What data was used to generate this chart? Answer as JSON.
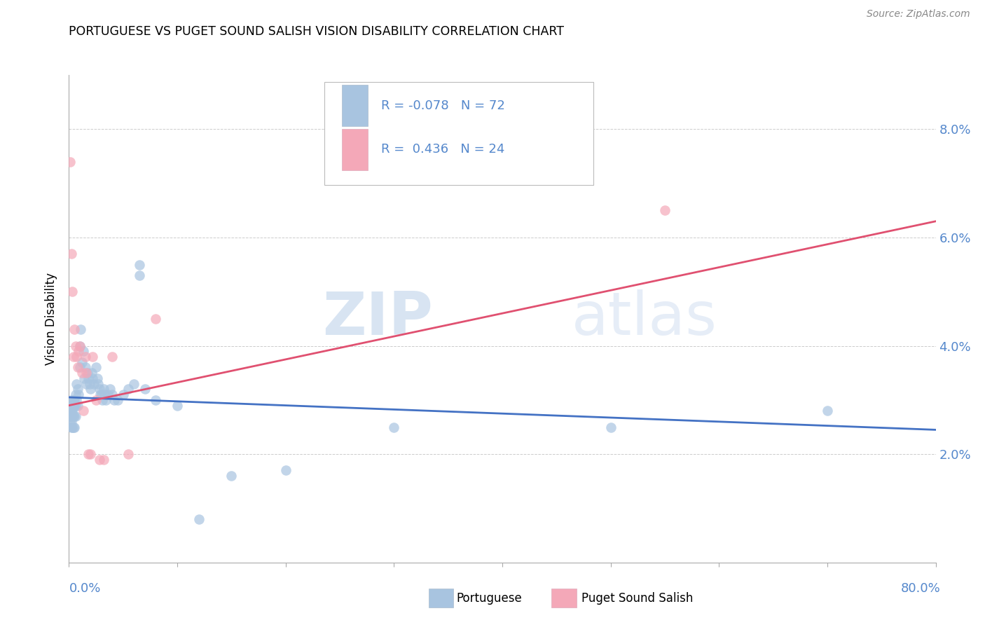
{
  "title": "PORTUGUESE VS PUGET SOUND SALISH VISION DISABILITY CORRELATION CHART",
  "source": "Source: ZipAtlas.com",
  "ylabel": "Vision Disability",
  "yticks": [
    0.0,
    0.02,
    0.04,
    0.06,
    0.08
  ],
  "ytick_labels": [
    "",
    "2.0%",
    "4.0%",
    "6.0%",
    "8.0%"
  ],
  "xlim": [
    0.0,
    0.8
  ],
  "ylim": [
    0.0,
    0.09
  ],
  "watermark_zip": "ZIP",
  "watermark_atlas": "atlas",
  "blue_color": "#a8c4e0",
  "pink_color": "#f4a8b8",
  "line_blue": "#4472c4",
  "line_pink": "#e05070",
  "axis_color": "#5588cc",
  "grid_color": "#cccccc",
  "blue_line_x": [
    0.0,
    0.8
  ],
  "blue_line_y": [
    0.0305,
    0.0245
  ],
  "pink_line_x": [
    0.0,
    0.8
  ],
  "pink_line_y": [
    0.029,
    0.063
  ],
  "portuguese_x": [
    0.001,
    0.001,
    0.001,
    0.002,
    0.002,
    0.002,
    0.002,
    0.002,
    0.003,
    0.003,
    0.003,
    0.003,
    0.004,
    0.004,
    0.004,
    0.004,
    0.005,
    0.005,
    0.005,
    0.005,
    0.006,
    0.006,
    0.006,
    0.007,
    0.007,
    0.008,
    0.008,
    0.009,
    0.01,
    0.01,
    0.011,
    0.012,
    0.013,
    0.014,
    0.015,
    0.016,
    0.017,
    0.018,
    0.019,
    0.02,
    0.021,
    0.022,
    0.023,
    0.025,
    0.026,
    0.027,
    0.028,
    0.029,
    0.03,
    0.031,
    0.032,
    0.033,
    0.034,
    0.036,
    0.038,
    0.04,
    0.042,
    0.045,
    0.05,
    0.055,
    0.06,
    0.065,
    0.065,
    0.07,
    0.08,
    0.1,
    0.12,
    0.15,
    0.2,
    0.3,
    0.5,
    0.7
  ],
  "portuguese_y": [
    0.028,
    0.027,
    0.026,
    0.03,
    0.028,
    0.027,
    0.026,
    0.025,
    0.029,
    0.028,
    0.027,
    0.025,
    0.03,
    0.029,
    0.027,
    0.025,
    0.03,
    0.029,
    0.027,
    0.025,
    0.031,
    0.029,
    0.027,
    0.033,
    0.03,
    0.032,
    0.029,
    0.031,
    0.04,
    0.036,
    0.043,
    0.037,
    0.039,
    0.034,
    0.036,
    0.033,
    0.035,
    0.034,
    0.033,
    0.032,
    0.035,
    0.034,
    0.033,
    0.036,
    0.034,
    0.033,
    0.032,
    0.031,
    0.031,
    0.03,
    0.032,
    0.031,
    0.03,
    0.031,
    0.032,
    0.031,
    0.03,
    0.03,
    0.031,
    0.032,
    0.033,
    0.055,
    0.053,
    0.032,
    0.03,
    0.029,
    0.008,
    0.016,
    0.017,
    0.025,
    0.025,
    0.028
  ],
  "puget_x": [
    0.001,
    0.002,
    0.003,
    0.004,
    0.005,
    0.006,
    0.007,
    0.008,
    0.009,
    0.01,
    0.012,
    0.013,
    0.015,
    0.016,
    0.018,
    0.02,
    0.022,
    0.025,
    0.028,
    0.032,
    0.04,
    0.055,
    0.08,
    0.55
  ],
  "puget_y": [
    0.074,
    0.057,
    0.05,
    0.038,
    0.043,
    0.04,
    0.038,
    0.036,
    0.039,
    0.04,
    0.035,
    0.028,
    0.038,
    0.035,
    0.02,
    0.02,
    0.038,
    0.03,
    0.019,
    0.019,
    0.038,
    0.02,
    0.045,
    0.065
  ]
}
